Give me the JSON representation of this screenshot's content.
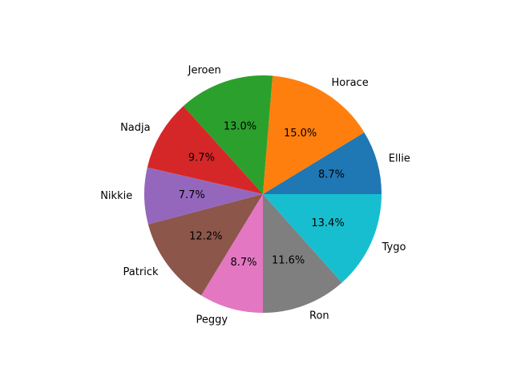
{
  "chart_data": {
    "type": "pie",
    "title": "",
    "start_angle_deg": 0,
    "direction": "counterclockwise",
    "slices": [
      {
        "label": "Ellie",
        "percent": 8.7,
        "pct_text": "8.7%",
        "color": "#1f77b4"
      },
      {
        "label": "Horace",
        "percent": 15.0,
        "pct_text": "15.0%",
        "color": "#ff7f0e"
      },
      {
        "label": "Jeroen",
        "percent": 13.0,
        "pct_text": "13.0%",
        "color": "#2ca02c"
      },
      {
        "label": "Nadja",
        "percent": 9.7,
        "pct_text": "9.7%",
        "color": "#d62728"
      },
      {
        "label": "Nikkie",
        "percent": 7.7,
        "pct_text": "7.7%",
        "color": "#9467bd"
      },
      {
        "label": "Patrick",
        "percent": 12.2,
        "pct_text": "12.2%",
        "color": "#8c564b"
      },
      {
        "label": "Peggy",
        "percent": 8.7,
        "pct_text": "8.7%",
        "color": "#e377c2"
      },
      {
        "label": "Ron",
        "percent": 11.6,
        "pct_text": "11.6%",
        "color": "#7f7f7f"
      },
      {
        "label": "Tygo",
        "percent": 13.4,
        "pct_text": "13.4%",
        "color": "#17becf"
      }
    ]
  }
}
